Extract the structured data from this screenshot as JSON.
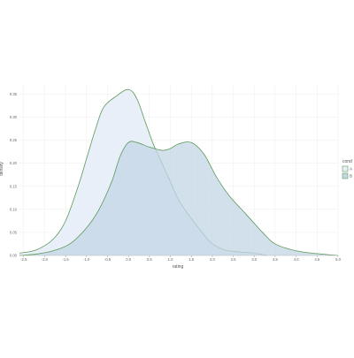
{
  "chart_data": {
    "type": "area",
    "subtype": "density",
    "title": "",
    "xlabel": "rating",
    "ylabel": "density",
    "xlim": [
      -2.6,
      5.0
    ],
    "ylim": [
      0,
      0.37
    ],
    "x_ticks": [
      "-2.5",
      "-2.0",
      "-1.5",
      "-1.0",
      "-0.5",
      "0.0",
      "0.5",
      "1.0",
      "1.5",
      "2.0",
      "2.5",
      "3.0",
      "3.5",
      "4.0",
      "4.5",
      "5.0"
    ],
    "x_tick_values": [
      -2.5,
      -2.0,
      -1.5,
      -1.0,
      -0.5,
      0.0,
      0.5,
      1.0,
      1.5,
      2.0,
      2.5,
      3.0,
      3.5,
      4.0,
      4.5,
      5.0
    ],
    "y_ticks": [
      "0.00",
      "0.05",
      "0.10",
      "0.15",
      "0.20",
      "0.25",
      "0.30",
      "0.35"
    ],
    "y_tick_values": [
      0.0,
      0.05,
      0.1,
      0.15,
      0.2,
      0.25,
      0.3,
      0.35
    ],
    "grid": true,
    "legend": {
      "title": "cond",
      "position": "right"
    },
    "series": [
      {
        "name": "A",
        "fill": "#e8eff8",
        "stroke": "#5a9a5a",
        "x": [
          -2.6,
          -2.2,
          -1.8,
          -1.5,
          -1.2,
          -1.0,
          -0.8,
          -0.6,
          -0.3,
          0.0,
          0.2,
          0.4,
          0.6,
          0.8,
          1.0,
          1.2,
          1.5,
          1.8,
          2.0,
          2.3,
          2.6,
          3.0,
          3.3
        ],
        "y": [
          0.005,
          0.012,
          0.035,
          0.075,
          0.15,
          0.21,
          0.27,
          0.32,
          0.345,
          0.36,
          0.34,
          0.29,
          0.24,
          0.2,
          0.16,
          0.12,
          0.08,
          0.045,
          0.025,
          0.012,
          0.008,
          0.005,
          0.0
        ]
      },
      {
        "name": "B",
        "fill": "#c3d6e6",
        "stroke": "#5a9a5a",
        "x": [
          -2.6,
          -2.2,
          -1.8,
          -1.4,
          -1.0,
          -0.7,
          -0.4,
          -0.2,
          0.0,
          0.2,
          0.5,
          0.8,
          1.0,
          1.2,
          1.5,
          1.8,
          2.1,
          2.4,
          2.8,
          3.2,
          3.5,
          4.0,
          4.5,
          5.0
        ],
        "y": [
          0.0,
          0.003,
          0.01,
          0.025,
          0.06,
          0.1,
          0.16,
          0.215,
          0.245,
          0.245,
          0.235,
          0.228,
          0.232,
          0.242,
          0.245,
          0.22,
          0.17,
          0.13,
          0.09,
          0.05,
          0.025,
          0.01,
          0.004,
          0.0
        ]
      }
    ]
  }
}
